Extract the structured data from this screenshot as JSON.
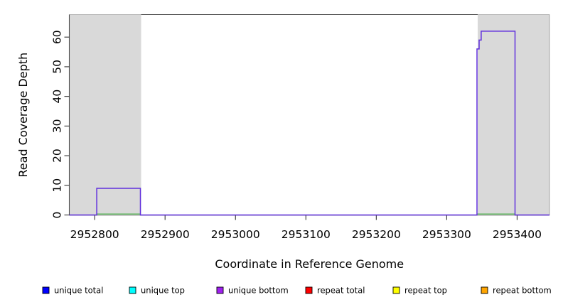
{
  "chart_data": {
    "type": "step-line",
    "title": "",
    "xlabel": "Coordinate in Reference Genome",
    "ylabel": "Read Coverage Depth",
    "xlim": [
      2952764,
      2953446
    ],
    "ylim": [
      0,
      67.6
    ],
    "x_ticks": [
      2952800,
      2952900,
      2953000,
      2953100,
      2953200,
      2953300,
      2953400
    ],
    "y_ticks": [
      0,
      10,
      20,
      30,
      40,
      50,
      60
    ],
    "grid": false,
    "background": "#ffffff",
    "plot_border_color": "#4d4d4d",
    "tick_color": "#333333",
    "text_color": "#000000",
    "shaded_regions": [
      {
        "name": "repeat-region-left",
        "x0": 2952764,
        "x1": 2952866,
        "color": "#d9d9d9"
      },
      {
        "name": "repeat-region-right",
        "x0": 2953344,
        "x1": 2953446,
        "color": "#d9d9d9"
      }
    ],
    "series": [
      {
        "name": "unique-bottom-coverage",
        "color": "#6130dd",
        "width": 1.5,
        "points": [
          [
            2952764,
            0
          ],
          [
            2952803,
            0
          ],
          [
            2952803,
            9
          ],
          [
            2952865,
            9
          ],
          [
            2952865,
            0
          ],
          [
            2953343,
            0
          ],
          [
            2953343,
            56
          ],
          [
            2953346,
            56
          ],
          [
            2953346,
            59
          ],
          [
            2953349,
            59
          ],
          [
            2953349,
            62
          ],
          [
            2953397,
            62
          ],
          [
            2953397,
            0
          ],
          [
            2953446,
            0
          ]
        ]
      },
      {
        "name": "zero-baseline-green",
        "color": "#55b455",
        "width": 1.3,
        "segments": [
          [
            [
              2952803,
              0
            ],
            [
              2952865,
              0
            ]
          ],
          [
            [
              2953343,
              0
            ],
            [
              2953397,
              0
            ]
          ]
        ]
      }
    ],
    "legend": {
      "position": "bottom",
      "items": [
        {
          "label": "unique total",
          "color": "#0000ff"
        },
        {
          "label": "unique top",
          "color": "#00ffff"
        },
        {
          "label": "unique bottom",
          "color": "#a020f0"
        },
        {
          "label": "repeat total",
          "color": "#ff0000"
        },
        {
          "label": "repeat top",
          "color": "#ffff00"
        },
        {
          "label": "repeat bottom",
          "color": "#ffa500"
        }
      ]
    }
  }
}
